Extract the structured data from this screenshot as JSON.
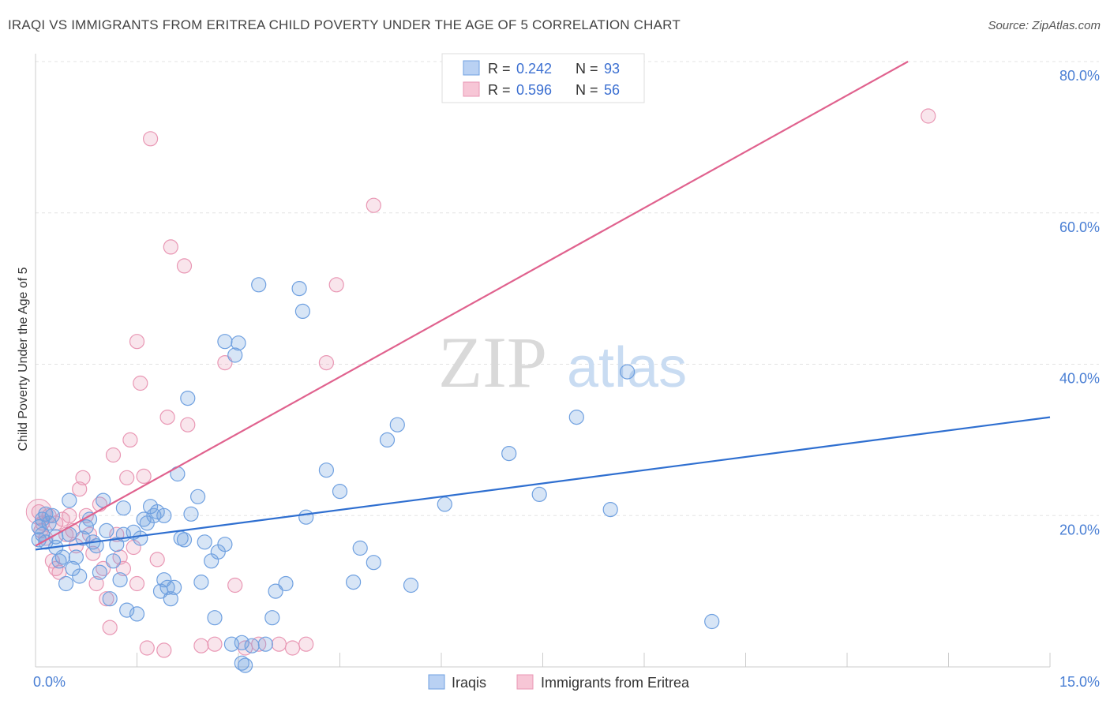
{
  "title": "IRAQI VS IMMIGRANTS FROM ERITREA CHILD POVERTY UNDER THE AGE OF 5 CORRELATION CHART",
  "source": "Source: ZipAtlas.com",
  "watermark": {
    "zip": "ZIP",
    "atlas": "atlas"
  },
  "colors": {
    "blue": "#6fa0e0",
    "blue_line": "#2f6fd0",
    "pink": "#e997b4",
    "pink_line": "#e0628e",
    "axis_text": "#4a7fd4"
  },
  "legend": {
    "rows": [
      {
        "r_label": "R =",
        "r_value": "0.242",
        "n_label": "N =",
        "n_value": "93"
      },
      {
        "r_label": "R =",
        "r_value": "0.596",
        "n_label": "N =",
        "n_value": "56"
      }
    ]
  },
  "bottom_legend": [
    "Iraqis",
    "Immigrants from Eritrea"
  ],
  "chart_data": {
    "type": "scatter",
    "title": "IRAQI VS IMMIGRANTS FROM ERITREA CHILD POVERTY UNDER THE AGE OF 5 CORRELATION CHART",
    "xlabel": "",
    "ylabel": "Child Poverty Under the Age of 5",
    "xlim": [
      0,
      15
    ],
    "ylim": [
      0,
      80
    ],
    "x_tick_labels": [
      "0.0%",
      "15.0%"
    ],
    "y_ticks": [
      20,
      40,
      60,
      80
    ],
    "y_tick_labels": [
      "20.0%",
      "40.0%",
      "60.0%",
      "80.0%"
    ],
    "grid": true,
    "legend_position": "top-center",
    "series": [
      {
        "name": "Iraqis",
        "color": "#6fa0e0",
        "r": 0.242,
        "n": 93,
        "trend": [
          [
            0,
            15.5
          ],
          [
            15,
            33
          ]
        ],
        "points": [
          [
            0.05,
            16.8
          ],
          [
            0.05,
            18.5
          ],
          [
            0.1,
            19.5
          ],
          [
            0.1,
            17.5
          ],
          [
            0.15,
            20.2
          ],
          [
            0.15,
            16.5
          ],
          [
            0.2,
            19
          ],
          [
            0.25,
            20
          ],
          [
            0.3,
            15.8
          ],
          [
            0.3,
            17.2
          ],
          [
            0.35,
            14
          ],
          [
            0.4,
            14.5
          ],
          [
            0.45,
            11
          ],
          [
            0.5,
            22
          ],
          [
            0.5,
            17.5
          ],
          [
            0.55,
            13
          ],
          [
            0.6,
            14.5
          ],
          [
            0.65,
            12
          ],
          [
            0.7,
            17
          ],
          [
            0.75,
            18.5
          ],
          [
            0.8,
            19.5
          ],
          [
            0.85,
            16.5
          ],
          [
            0.9,
            16
          ],
          [
            0.95,
            12.5
          ],
          [
            1.0,
            22
          ],
          [
            1.05,
            18
          ],
          [
            1.1,
            9
          ],
          [
            1.15,
            14
          ],
          [
            1.2,
            16.2
          ],
          [
            1.25,
            11.5
          ],
          [
            1.3,
            17.5
          ],
          [
            1.3,
            21
          ],
          [
            1.35,
            7.5
          ],
          [
            1.45,
            17.8
          ],
          [
            1.5,
            7
          ],
          [
            1.55,
            17
          ],
          [
            1.6,
            19.5
          ],
          [
            1.65,
            19
          ],
          [
            1.7,
            21.2
          ],
          [
            1.75,
            20
          ],
          [
            1.8,
            20.5
          ],
          [
            1.85,
            10
          ],
          [
            1.9,
            11.5
          ],
          [
            1.9,
            20
          ],
          [
            1.95,
            10.5
          ],
          [
            2.0,
            9
          ],
          [
            2.05,
            10.5
          ],
          [
            2.1,
            25.5
          ],
          [
            2.15,
            17
          ],
          [
            2.2,
            16.8
          ],
          [
            2.25,
            35.5
          ],
          [
            2.3,
            20.2
          ],
          [
            2.4,
            22.5
          ],
          [
            2.45,
            11.2
          ],
          [
            2.5,
            16.5
          ],
          [
            2.6,
            14
          ],
          [
            2.65,
            6.5
          ],
          [
            2.7,
            15.2
          ],
          [
            2.8,
            43
          ],
          [
            2.8,
            16.2
          ],
          [
            2.9,
            3
          ],
          [
            2.95,
            41.2
          ],
          [
            3.0,
            42.8
          ],
          [
            3.05,
            3.2
          ],
          [
            3.05,
            0.5
          ],
          [
            3.1,
            0.2
          ],
          [
            3.2,
            2.8
          ],
          [
            3.3,
            50.5
          ],
          [
            3.4,
            3
          ],
          [
            3.5,
            6.5
          ],
          [
            3.55,
            10
          ],
          [
            3.7,
            11
          ],
          [
            3.9,
            50
          ],
          [
            3.95,
            47
          ],
          [
            4.0,
            19.8
          ],
          [
            4.3,
            26
          ],
          [
            4.5,
            23.2
          ],
          [
            4.7,
            11.2
          ],
          [
            4.8,
            15.7
          ],
          [
            5.0,
            13.8
          ],
          [
            5.2,
            30
          ],
          [
            5.35,
            32
          ],
          [
            5.55,
            10.8
          ],
          [
            6.05,
            21.5
          ],
          [
            7.0,
            28.2
          ],
          [
            7.45,
            22.8
          ],
          [
            8.0,
            33
          ],
          [
            8.5,
            20.8
          ],
          [
            8.75,
            39
          ],
          [
            10.0,
            6
          ]
        ]
      },
      {
        "name": "Immigrants from Eritrea",
        "color": "#e997b4",
        "r": 0.596,
        "n": 56,
        "trend": [
          [
            0,
            16
          ],
          [
            12.9,
            80
          ]
        ],
        "points": [
          [
            0.05,
            20.5
          ],
          [
            0.08,
            18
          ],
          [
            0.1,
            19
          ],
          [
            0.15,
            17
          ],
          [
            0.2,
            20
          ],
          [
            0.25,
            14
          ],
          [
            0.3,
            13
          ],
          [
            0.35,
            12.5
          ],
          [
            0.4,
            19.5
          ],
          [
            0.45,
            17.5
          ],
          [
            0.5,
            20
          ],
          [
            0.55,
            18
          ],
          [
            0.6,
            16
          ],
          [
            0.65,
            23.5
          ],
          [
            0.7,
            25
          ],
          [
            0.75,
            20
          ],
          [
            0.8,
            17.5
          ],
          [
            0.85,
            15
          ],
          [
            0.9,
            11
          ],
          [
            0.95,
            21.5
          ],
          [
            1.0,
            13
          ],
          [
            1.05,
            9
          ],
          [
            1.1,
            5.2
          ],
          [
            1.15,
            28
          ],
          [
            1.2,
            17.5
          ],
          [
            1.25,
            14.5
          ],
          [
            1.3,
            13
          ],
          [
            1.35,
            25
          ],
          [
            1.4,
            30
          ],
          [
            1.45,
            15.8
          ],
          [
            1.5,
            43
          ],
          [
            1.55,
            37.5
          ],
          [
            1.6,
            25.2
          ],
          [
            1.65,
            2.5
          ],
          [
            1.7,
            69.8
          ],
          [
            1.8,
            14.2
          ],
          [
            1.9,
            2.2
          ],
          [
            1.95,
            33
          ],
          [
            2.0,
            55.5
          ],
          [
            2.2,
            53
          ],
          [
            2.25,
            32
          ],
          [
            2.45,
            2.8
          ],
          [
            2.65,
            3
          ],
          [
            2.8,
            40.2
          ],
          [
            2.95,
            10.8
          ],
          [
            3.1,
            2.5
          ],
          [
            3.3,
            3
          ],
          [
            3.6,
            3
          ],
          [
            3.8,
            2.5
          ],
          [
            4.0,
            3
          ],
          [
            4.3,
            40.2
          ],
          [
            4.45,
            50.5
          ],
          [
            5.0,
            61
          ],
          [
            0.3,
            19
          ],
          [
            1.5,
            11
          ],
          [
            13.2,
            72.8
          ]
        ]
      }
    ]
  }
}
